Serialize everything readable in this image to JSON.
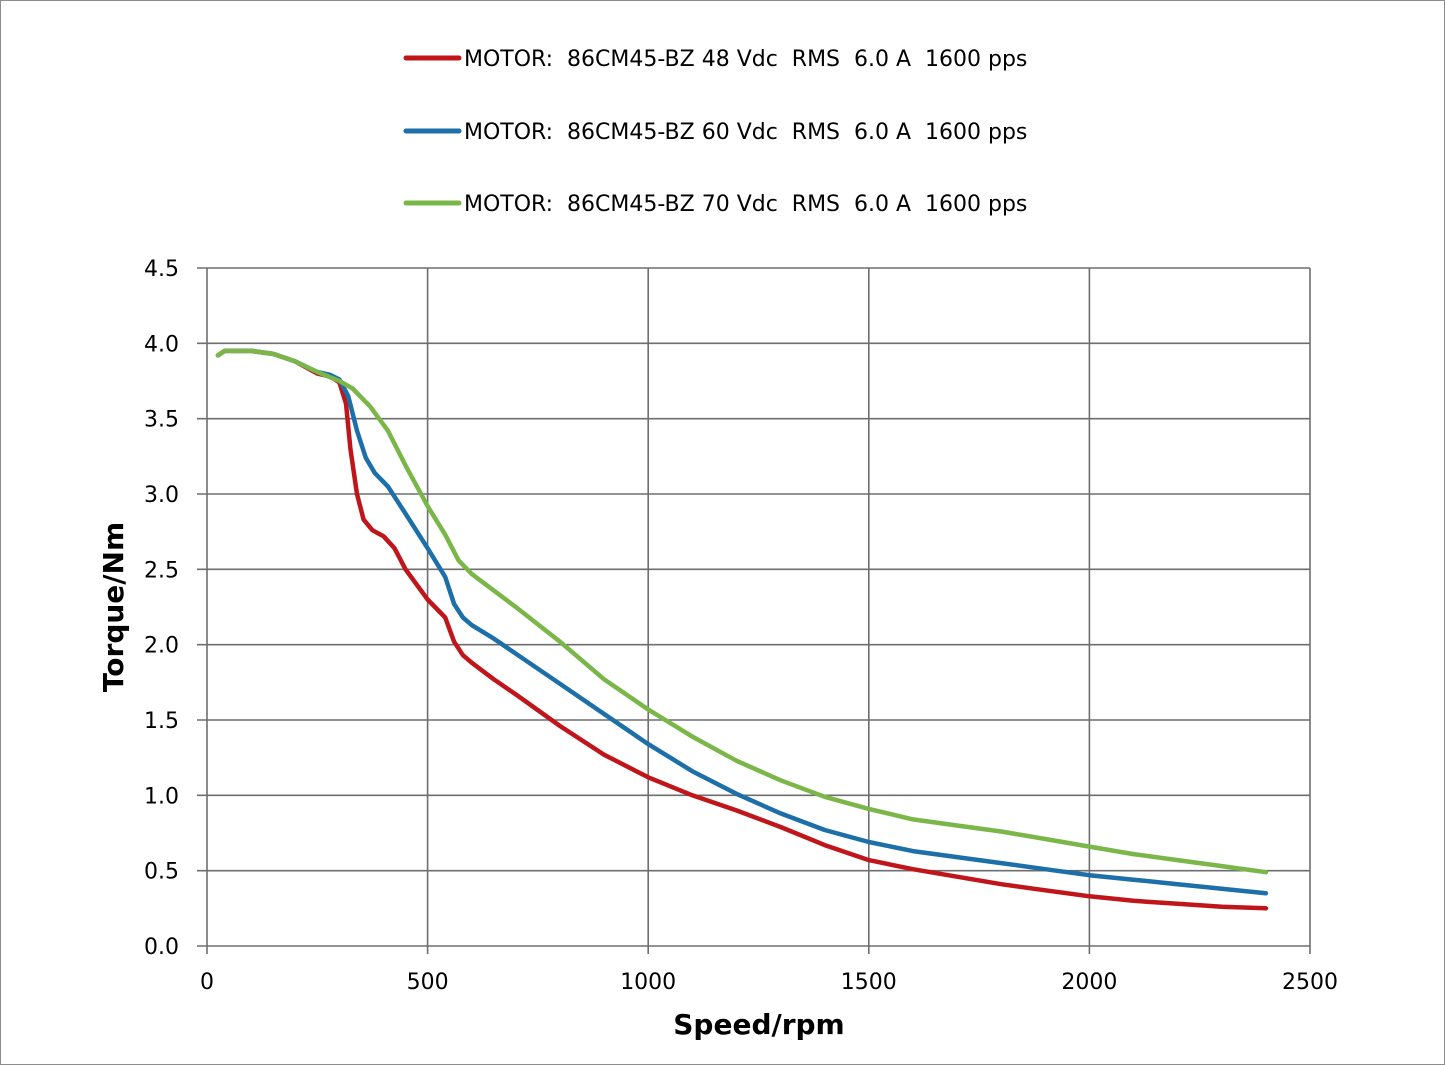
{
  "chart_data": {
    "type": "line",
    "title": "",
    "xlabel": "Speed/rpm",
    "ylabel": "Torque/Nm",
    "xlim": [
      0,
      2500
    ],
    "ylim": [
      0,
      4.5
    ],
    "x_ticks": [
      "0",
      "500",
      "1000",
      "1500",
      "2000",
      "2500"
    ],
    "y_ticks": [
      "0.0",
      "0.5",
      "1.0",
      "1.5",
      "2.0",
      "2.5",
      "3.0",
      "3.5",
      "4.0",
      "4.5"
    ],
    "grid": true,
    "legend_position": "top-center",
    "series": [
      {
        "name": "MOTOR:  86CM45-BZ 48 Vdc  RMS  6.0 A  1600 pps",
        "color": "#c0161b",
        "points": [
          [
            25,
            3.92
          ],
          [
            40,
            3.95
          ],
          [
            100,
            3.95
          ],
          [
            150,
            3.93
          ],
          [
            200,
            3.88
          ],
          [
            250,
            3.8
          ],
          [
            280,
            3.78
          ],
          [
            300,
            3.74
          ],
          [
            315,
            3.6
          ],
          [
            325,
            3.3
          ],
          [
            340,
            3.0
          ],
          [
            355,
            2.83
          ],
          [
            375,
            2.76
          ],
          [
            400,
            2.72
          ],
          [
            425,
            2.64
          ],
          [
            450,
            2.5
          ],
          [
            500,
            2.3
          ],
          [
            540,
            2.18
          ],
          [
            560,
            2.02
          ],
          [
            580,
            1.93
          ],
          [
            600,
            1.88
          ],
          [
            650,
            1.77
          ],
          [
            700,
            1.67
          ],
          [
            800,
            1.46
          ],
          [
            900,
            1.27
          ],
          [
            1000,
            1.12
          ],
          [
            1100,
            1.0
          ],
          [
            1200,
            0.9
          ],
          [
            1300,
            0.79
          ],
          [
            1400,
            0.67
          ],
          [
            1500,
            0.57
          ],
          [
            1600,
            0.51
          ],
          [
            1700,
            0.46
          ],
          [
            1800,
            0.41
          ],
          [
            1900,
            0.37
          ],
          [
            2000,
            0.33
          ],
          [
            2100,
            0.3
          ],
          [
            2200,
            0.28
          ],
          [
            2300,
            0.26
          ],
          [
            2400,
            0.25
          ]
        ]
      },
      {
        "name": "MOTOR:  86CM45-BZ 60 Vdc  RMS  6.0 A  1600 pps",
        "color": "#1c6fa8",
        "points": [
          [
            25,
            3.92
          ],
          [
            40,
            3.95
          ],
          [
            100,
            3.95
          ],
          [
            150,
            3.93
          ],
          [
            200,
            3.88
          ],
          [
            250,
            3.81
          ],
          [
            280,
            3.79
          ],
          [
            300,
            3.76
          ],
          [
            320,
            3.65
          ],
          [
            340,
            3.42
          ],
          [
            360,
            3.24
          ],
          [
            380,
            3.14
          ],
          [
            410,
            3.05
          ],
          [
            450,
            2.87
          ],
          [
            500,
            2.64
          ],
          [
            540,
            2.45
          ],
          [
            560,
            2.27
          ],
          [
            580,
            2.18
          ],
          [
            600,
            2.13
          ],
          [
            650,
            2.04
          ],
          [
            700,
            1.94
          ],
          [
            800,
            1.74
          ],
          [
            900,
            1.54
          ],
          [
            1000,
            1.34
          ],
          [
            1100,
            1.16
          ],
          [
            1200,
            1.01
          ],
          [
            1300,
            0.88
          ],
          [
            1400,
            0.77
          ],
          [
            1500,
            0.69
          ],
          [
            1600,
            0.63
          ],
          [
            1700,
            0.59
          ],
          [
            1800,
            0.55
          ],
          [
            1900,
            0.51
          ],
          [
            2000,
            0.47
          ],
          [
            2100,
            0.44
          ],
          [
            2200,
            0.41
          ],
          [
            2300,
            0.38
          ],
          [
            2400,
            0.35
          ]
        ]
      },
      {
        "name": "MOTOR:  86CM45-BZ 70 Vdc  RMS  6.0 A  1600 pps",
        "color": "#7ab648",
        "points": [
          [
            25,
            3.92
          ],
          [
            40,
            3.95
          ],
          [
            100,
            3.95
          ],
          [
            150,
            3.93
          ],
          [
            200,
            3.88
          ],
          [
            250,
            3.81
          ],
          [
            300,
            3.75
          ],
          [
            330,
            3.7
          ],
          [
            370,
            3.58
          ],
          [
            410,
            3.42
          ],
          [
            450,
            3.19
          ],
          [
            500,
            2.92
          ],
          [
            540,
            2.73
          ],
          [
            570,
            2.56
          ],
          [
            600,
            2.47
          ],
          [
            700,
            2.25
          ],
          [
            800,
            2.02
          ],
          [
            900,
            1.77
          ],
          [
            1000,
            1.57
          ],
          [
            1100,
            1.39
          ],
          [
            1200,
            1.23
          ],
          [
            1300,
            1.1
          ],
          [
            1400,
            0.99
          ],
          [
            1500,
            0.91
          ],
          [
            1600,
            0.84
          ],
          [
            1700,
            0.8
          ],
          [
            1800,
            0.76
          ],
          [
            1900,
            0.71
          ],
          [
            2000,
            0.66
          ],
          [
            2100,
            0.61
          ],
          [
            2200,
            0.57
          ],
          [
            2300,
            0.53
          ],
          [
            2400,
            0.49
          ]
        ]
      }
    ]
  }
}
